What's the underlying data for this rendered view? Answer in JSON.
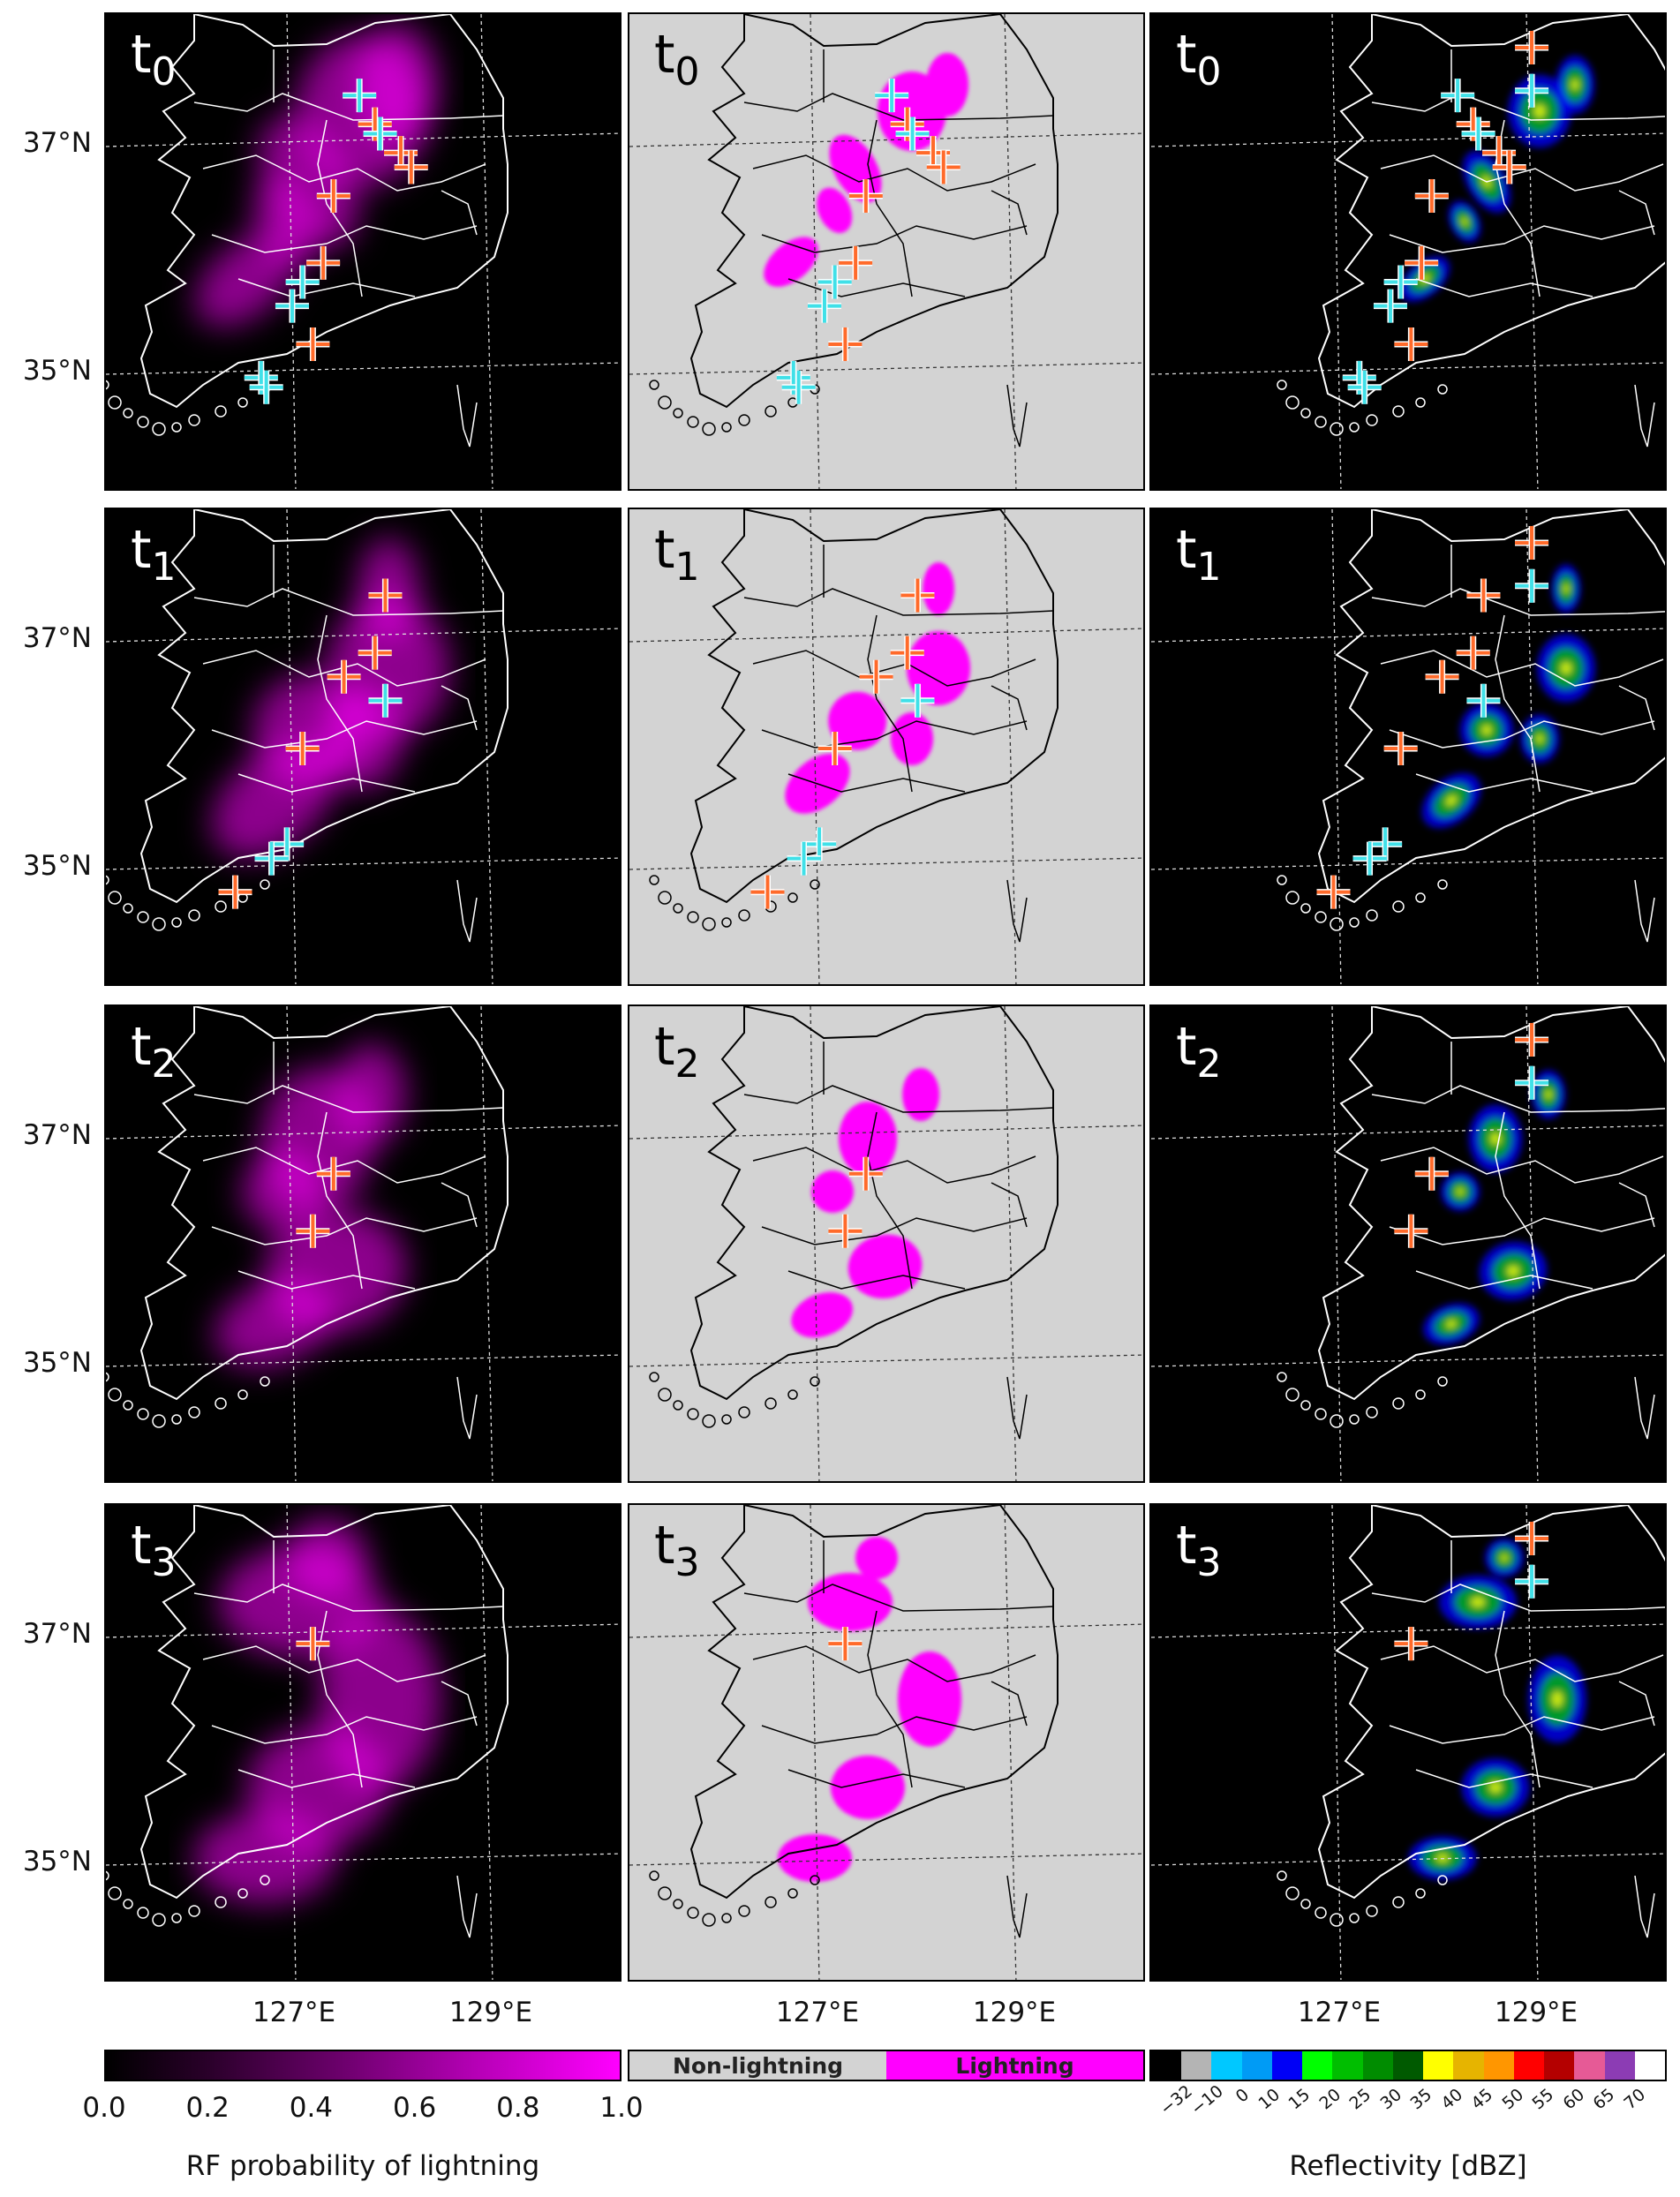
{
  "rows": [
    {
      "label": "t",
      "sub": "0"
    },
    {
      "label": "t",
      "sub": "1"
    },
    {
      "label": "t",
      "sub": "2"
    },
    {
      "label": "t",
      "sub": "3"
    }
  ],
  "lat_labels": [
    "37°N",
    "35°N"
  ],
  "lon_labels": [
    "127°E",
    "129°E"
  ],
  "colorbars": {
    "probability": {
      "ticks": [
        "0.0",
        "0.2",
        "0.4",
        "0.6",
        "0.8",
        "1.0"
      ],
      "title": "RF probability of lightning",
      "color_low": "#000000",
      "color_high": "#ff00ff"
    },
    "binary": {
      "non_label": "Non-lightning",
      "yes_label": "Lightning",
      "non_color": "#d3d3d3",
      "yes_color": "#ff00ff"
    },
    "reflectivity": {
      "title": "Reflectivity [dBZ]",
      "ticks": [
        "−32",
        "−10",
        "0",
        "10",
        "15",
        "20",
        "25",
        "30",
        "35",
        "40",
        "45",
        "50",
        "55",
        "60",
        "65",
        "70"
      ],
      "colors": [
        "#000000",
        "#b4b4b4",
        "#00c8ff",
        "#009bf5",
        "#0000f6",
        "#00ff00",
        "#00be00",
        "#008c00",
        "#005a00",
        "#ffff00",
        "#e6b400",
        "#ff9600",
        "#ff0000",
        "#b40000",
        "#e65a96",
        "#8c3cb4",
        "#ffffff"
      ]
    }
  },
  "map_colors": {
    "rf_background": "#000000",
    "rf_blob": "#ff00ff",
    "binary_background": "#d3d3d3",
    "binary_blob": "#ff00ff",
    "radar_background": "#000000",
    "outline_on_dark": "#ffffff",
    "outline_on_light": "#000000",
    "marker_observed": "#ff6a2a",
    "marker_predicted": "#40e0e8"
  }
}
